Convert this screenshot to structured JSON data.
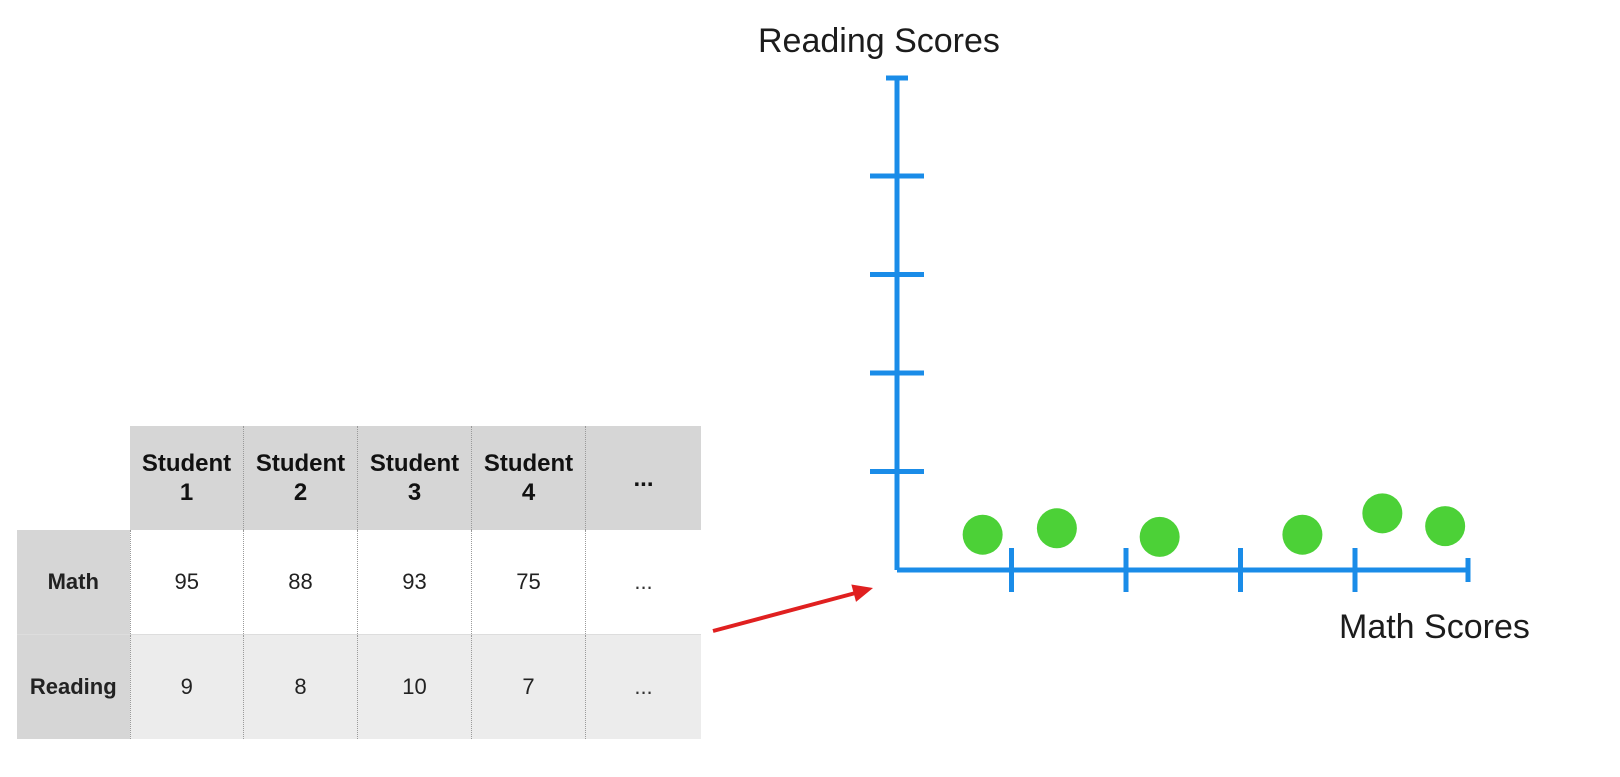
{
  "table": {
    "columns": [
      "Student\n1",
      "Student\n2",
      "Student\n3",
      "Student\n4",
      "..."
    ],
    "column_lines": [
      [
        "Student",
        "1"
      ],
      [
        "Student",
        "2"
      ],
      [
        "Student",
        "3"
      ],
      [
        "Student",
        "4"
      ],
      [
        "..."
      ]
    ],
    "rows": [
      {
        "label": "Math",
        "values": [
          "95",
          "88",
          "93",
          "75",
          "..."
        ]
      },
      {
        "label": "Reading",
        "values": [
          "9",
          "8",
          "10",
          "7",
          "..."
        ]
      }
    ]
  },
  "chart_data": {
    "type": "scatter",
    "xlabel": "Math Scores",
    "ylabel": "Reading Scores",
    "x_ticks": 4,
    "y_ticks": 4,
    "points_color": "#4cd137",
    "axis_color": "#1a8ce8",
    "arrow_color": "#e02020",
    "point_levels": [
      0.33,
      0.39,
      0.31,
      0.33,
      0.53,
      0.41
    ],
    "point_x_fraction": [
      0.15,
      0.28,
      0.46,
      0.71,
      0.85,
      0.96
    ]
  }
}
